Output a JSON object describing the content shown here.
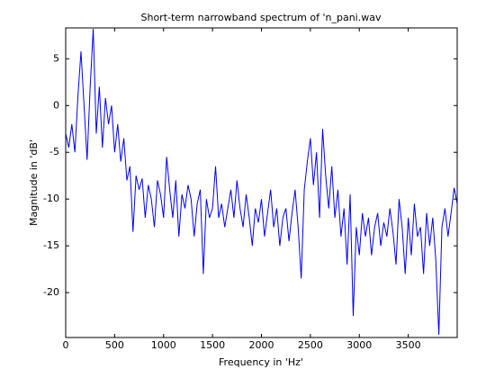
{
  "chart_data": {
    "type": "line",
    "title": "Short-term narrowband spectrum of 'n_pani.wav",
    "x_label": "Frequency in 'Hz'",
    "y_label": "Magnitude in 'dB'",
    "xlim": [
      0,
      4000
    ],
    "ylim": [
      -24.8,
      8.3
    ],
    "xticks": [
      0,
      500,
      1000,
      1500,
      2000,
      2500,
      3000,
      3500
    ],
    "yticks": [
      -20,
      -15,
      -10,
      -5,
      0,
      5
    ],
    "x": [
      0,
      31.25,
      62.5,
      93.75,
      125,
      156.25,
      187.5,
      218.75,
      250,
      281.25,
      312.5,
      343.75,
      375,
      406.25,
      437.5,
      468.75,
      500,
      531.25,
      562.5,
      593.75,
      625,
      656.25,
      687.5,
      718.75,
      750,
      781.25,
      812.5,
      843.75,
      875,
      906.25,
      937.5,
      968.75,
      1000,
      1031.25,
      1062.5,
      1093.75,
      1125,
      1156.25,
      1187.5,
      1218.75,
      1250,
      1281.25,
      1312.5,
      1343.75,
      1375,
      1406.25,
      1437.5,
      1468.75,
      1500,
      1531.25,
      1562.5,
      1593.75,
      1625,
      1656.25,
      1687.5,
      1718.75,
      1750,
      1781.25,
      1812.5,
      1843.75,
      1875,
      1906.25,
      1937.5,
      1968.75,
      2000,
      2031.25,
      2062.5,
      2093.75,
      2125,
      2156.25,
      2187.5,
      2218.75,
      2250,
      2281.25,
      2312.5,
      2343.75,
      2375,
      2406.25,
      2437.5,
      2468.75,
      2500,
      2531.25,
      2562.5,
      2593.75,
      2625,
      2656.25,
      2687.5,
      2718.75,
      2750,
      2781.25,
      2812.5,
      2843.75,
      2875,
      2906.25,
      2937.5,
      2968.75,
      3000,
      3031.25,
      3062.5,
      3093.75,
      3125,
      3156.25,
      3187.5,
      3218.75,
      3250,
      3281.25,
      3312.5,
      3343.75,
      3375,
      3406.25,
      3437.5,
      3468.75,
      3500,
      3531.25,
      3562.5,
      3593.75,
      3625,
      3656.25,
      3687.5,
      3718.75,
      3750,
      3781.25,
      3812.5,
      3843.75,
      3875,
      3906.25,
      3937.5,
      3968.75,
      4000
    ],
    "series": [
      {
        "color": "#0000ff",
        "values": [
          -3,
          -4.5,
          -2,
          -5,
          1,
          5.8,
          0,
          -5.8,
          2,
          8.2,
          -3,
          2,
          -4.5,
          0.8,
          -2,
          0,
          -5,
          -2,
          -6,
          -3.5,
          -8,
          -6.5,
          -13.5,
          -7.5,
          -9,
          -7.8,
          -12,
          -8.5,
          -10,
          -13,
          -8,
          -9.5,
          -12,
          -5.5,
          -9,
          -12,
          -8,
          -14,
          -9.5,
          -11,
          -8.5,
          -10,
          -14,
          -10.5,
          -9,
          -18,
          -10,
          -12,
          -11,
          -6.5,
          -12,
          -10.5,
          -13,
          -11,
          -9,
          -12,
          -8,
          -11,
          -13,
          -9.5,
          -12,
          -15,
          -11,
          -12.5,
          -10,
          -14,
          -11.5,
          -9,
          -13,
          -11,
          -15,
          -12,
          -11,
          -14.5,
          -11.5,
          -9,
          -13,
          -18.5,
          -9,
          -6,
          -3.5,
          -8.5,
          -5,
          -12,
          -2.5,
          -7.5,
          -11,
          -6.5,
          -12,
          -9,
          -14,
          -11,
          -17,
          -9.5,
          -22.5,
          -13,
          -16,
          -11.5,
          -14,
          -12,
          -16,
          -13,
          -11.5,
          -15,
          -12.5,
          -14,
          -11,
          -13.5,
          -17,
          -10,
          -13,
          -18,
          -12,
          -16,
          -10.5,
          -14,
          -13,
          -18,
          -11.5,
          -15,
          -12,
          -16.5,
          -24.5,
          -13,
          -11,
          -14,
          -11.5,
          -8.8,
          -10.5
        ]
      }
    ]
  }
}
